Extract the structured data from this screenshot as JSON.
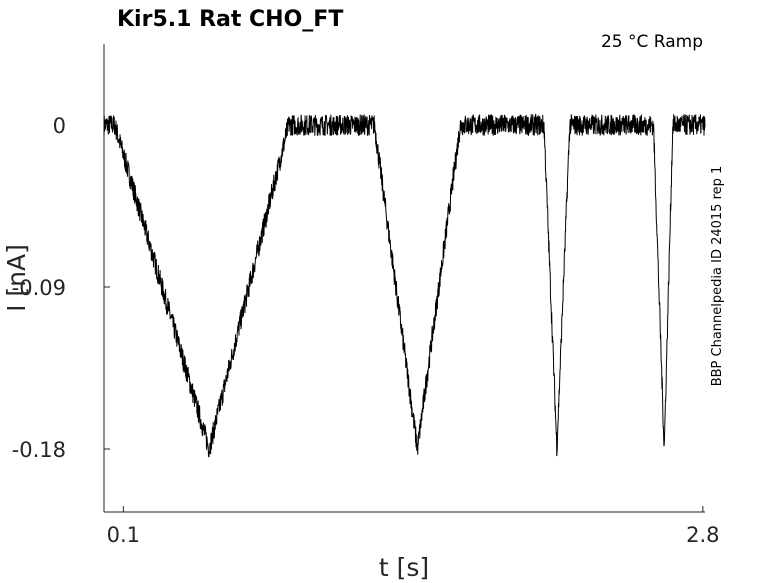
{
  "chart_data": {
    "type": "line",
    "title": "Kir5.1  Rat  CHO_FT",
    "annotation": "25 °C  Ramp",
    "side_label": "BBP Channelpedia ID 24015 rep 1",
    "xlabel": "t [s]",
    "ylabel": "I [nA]",
    "xlim": [
      0.01,
      2.81
    ],
    "ylim": [
      -0.215,
      0.045
    ],
    "x_ticks": [
      0.1,
      2.8
    ],
    "x_tick_labels": [
      "0.1",
      "2.8"
    ],
    "y_ticks": [
      0,
      -0.09,
      -0.18
    ],
    "y_tick_labels": [
      "0",
      "-0.09",
      "-0.18"
    ],
    "noise_amplitude_nA": 0.006,
    "series": [
      {
        "x": [
          0.01,
          0.06,
          0.5,
          0.87,
          1.27,
          1.47,
          1.67,
          2.06,
          2.12,
          2.18,
          2.57,
          2.62,
          2.66,
          2.81
        ],
        "y": [
          0.0,
          0.0,
          -0.18,
          0.0,
          0.0,
          -0.18,
          0.0,
          0.0,
          -0.18,
          0.0,
          0.0,
          -0.18,
          0.0,
          0.0
        ]
      }
    ]
  }
}
